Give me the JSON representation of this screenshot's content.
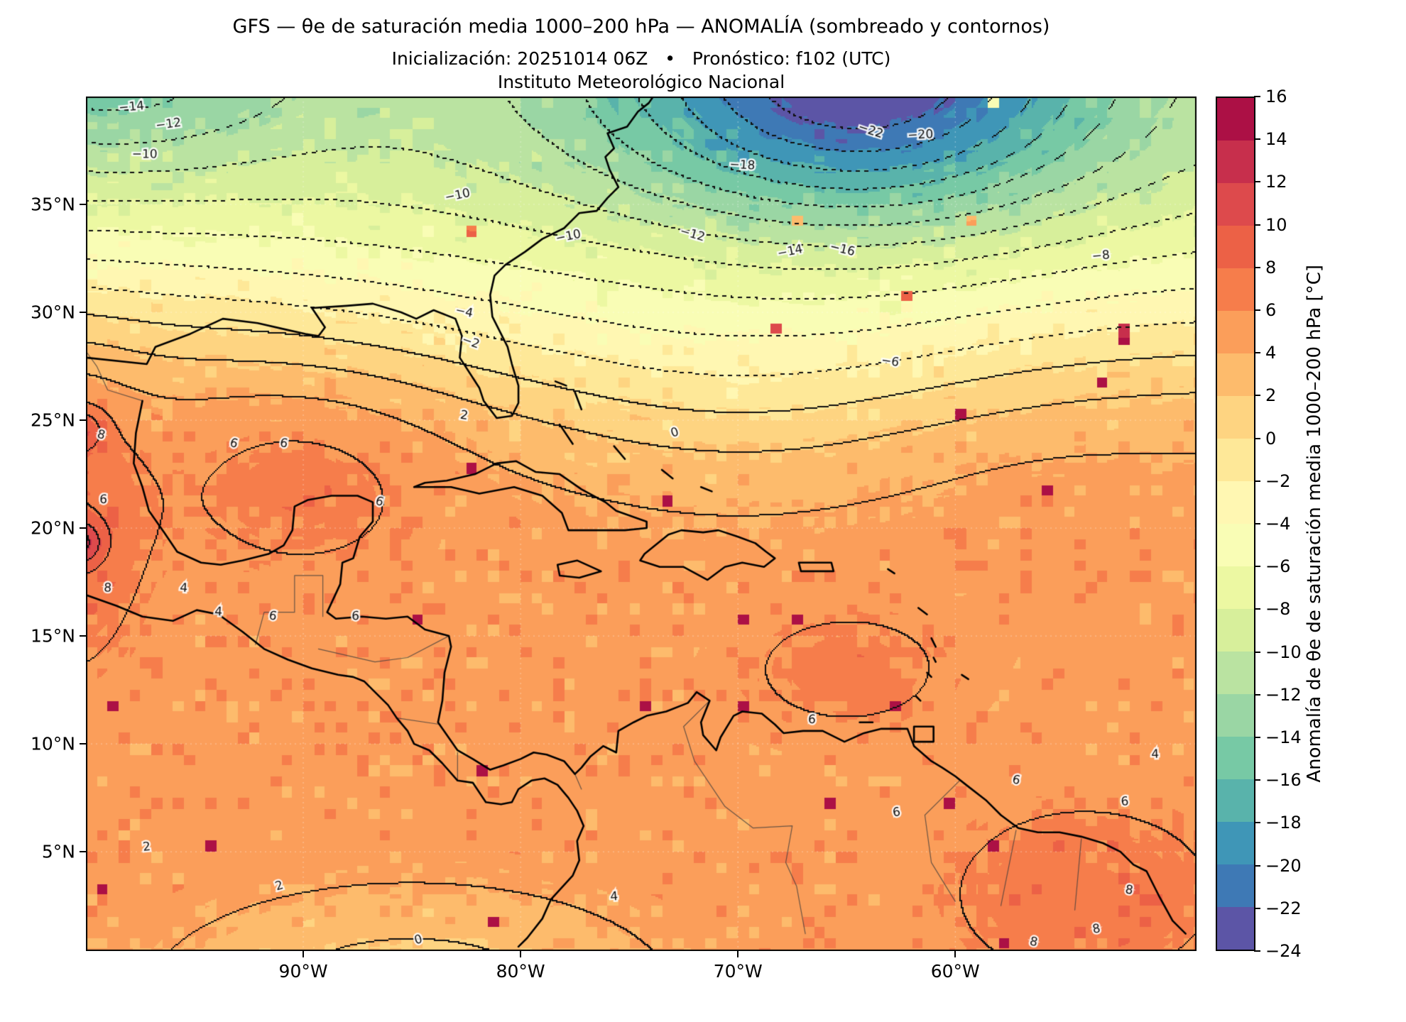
{
  "header": {
    "title": "GFS — θe de saturación media 1000–200 hPa — ANOMALÍA (sombreado y contornos)",
    "subtitle": "Inicialización: 20251014 06Z   •   Pronóstico: f102 (UTC)",
    "org": "Instituto Meteorológico Nacional"
  },
  "chart_data": {
    "type": "heatmap",
    "field_name": "Anomalía de θe de saturación media 1000–200 hPa",
    "units": "°C",
    "contour_interval": 2,
    "projection": {
      "lon_min": -100.0,
      "lon_max": -48.9,
      "lat_min": 0.4,
      "lat_max": 40.0
    },
    "x_axis": {
      "ticks": [
        {
          "lon": -90,
          "label": "90°W"
        },
        {
          "lon": -80,
          "label": "80°W"
        },
        {
          "lon": -70,
          "label": "70°W"
        },
        {
          "lon": -60,
          "label": "60°W"
        }
      ]
    },
    "y_axis": {
      "ticks": [
        {
          "lat": 35,
          "label": "35°N"
        },
        {
          "lat": 30,
          "label": "30°N"
        },
        {
          "lat": 25,
          "label": "25°N"
        },
        {
          "lat": 20,
          "label": "20°N"
        },
        {
          "lat": 15,
          "label": "15°N"
        },
        {
          "lat": 10,
          "label": "10°N"
        },
        {
          "lat": 5,
          "label": "5°N"
        }
      ]
    },
    "colorbar": {
      "label": "Anomalía de θe de saturación media 1000–200 hPa [°C]",
      "levels": [
        -24,
        -22,
        -20,
        -18,
        -16,
        -14,
        -12,
        -10,
        -8,
        -6,
        -4,
        -2,
        0,
        2,
        4,
        6,
        8,
        10,
        12,
        14,
        16
      ],
      "colors": [
        "#5c55a6",
        "#3e79b5",
        "#3f96b7",
        "#59b3ab",
        "#77c9a5",
        "#9ad6a4",
        "#bae3a1",
        "#d7ef9b",
        "#ecf8a2",
        "#f9fdb5",
        "#fff7b2",
        "#fee898",
        "#fed481",
        "#fdbb6c",
        "#fb9e5a",
        "#f67d4b",
        "#ec6146",
        "#dd4a4c",
        "#c72f4c",
        "#ac1045"
      ]
    },
    "extrema": {
      "minimum": {
        "value": -24,
        "lon": -64,
        "lat": 40
      },
      "maximum": {
        "value": 12,
        "lon": -100.3,
        "lat": 19.3
      }
    },
    "field_model": {
      "base": 5.0,
      "sigmoids": [
        {
          "amp": -9.5,
          "lat0": 28.3,
          "width": 2.2,
          "lon_dip": {
            "amp": 3.0,
            "lon0": -70,
            "sx": 12
          },
          "lon_raise": {
            "amp": 1.5,
            "lon0": -101,
            "sx": 14
          }
        },
        {
          "amp": -9.5,
          "lat0": 34.0,
          "width": 2.3,
          "lon_weight": {
            "base": 0.55,
            "amp": 0.45,
            "lon0": -67,
            "sx": 16
          }
        }
      ],
      "gaussians": [
        {
          "amp": -11.0,
          "lon": -64,
          "lat": 41,
          "sx": 10,
          "sy": 6.2
        },
        {
          "amp": -5.5,
          "lon": -99,
          "lat": 41,
          "sx": 9,
          "sy": 4.5
        },
        {
          "amp": 2.2,
          "lon": -90,
          "lat": 22.5,
          "sx": 6,
          "sy": 4.5
        },
        {
          "amp": 3.2,
          "lon": -101,
          "lat": 21,
          "sx": 3.5,
          "sy": 7
        },
        {
          "amp": 5.2,
          "lon": -100.3,
          "lat": 19.3,
          "sx": 1.1,
          "sy": 1.0
        },
        {
          "amp": 3.6,
          "lon": -100.2,
          "lat": 24.6,
          "sx": 1.0,
          "sy": 0.9
        },
        {
          "amp": 1.8,
          "lon": -65,
          "lat": 13.5,
          "sx": 5,
          "sy": 3
        },
        {
          "amp": 2.5,
          "lon": -54,
          "lat": 3,
          "sx": 6,
          "sy": 4
        },
        {
          "amp": -4.2,
          "lon": -85,
          "lat": -1.5,
          "sx": 10,
          "sy": 4.2
        },
        {
          "amp": 0.6,
          "lon": -55,
          "lat": 19,
          "sx": 5,
          "sy": 4
        }
      ],
      "noise": {
        "cell_deg": 0.5,
        "amp": 1.1,
        "spike_threshold": 0.93,
        "spike_amp": 0.85,
        "neg_threshold": 0.05,
        "neg_amp": 0.7,
        "hot_threshold": 0.996,
        "hot_amp": 14
      }
    },
    "contour_labels": [
      {
        "text": "−14",
        "lon": -97.9,
        "lat": 39.5
      },
      {
        "text": "−12",
        "lon": -96.2,
        "lat": 38.7
      },
      {
        "text": "−10",
        "lon": -97.3,
        "lat": 37.3
      },
      {
        "text": "−10",
        "lon": -82.9,
        "lat": 35.4
      },
      {
        "text": "−10",
        "lon": -77.8,
        "lat": 33.5
      },
      {
        "text": "−12",
        "lon": -72.1,
        "lat": 33.6
      },
      {
        "text": "−14",
        "lon": -67.6,
        "lat": 32.8
      },
      {
        "text": "−16",
        "lon": -65.2,
        "lat": 32.9
      },
      {
        "text": "−18",
        "lon": -69.8,
        "lat": 36.8
      },
      {
        "text": "−20",
        "lon": -61.6,
        "lat": 38.2
      },
      {
        "text": "−22",
        "lon": -63.9,
        "lat": 38.4
      },
      {
        "text": "−8",
        "lon": -53.3,
        "lat": 32.6
      },
      {
        "text": "−6",
        "lon": -63.0,
        "lat": 27.7
      },
      {
        "text": "−4",
        "lon": -82.6,
        "lat": 30.0
      },
      {
        "text": "−2",
        "lon": -82.3,
        "lat": 28.6
      },
      {
        "text": "0",
        "lon": -72.9,
        "lat": 24.4
      },
      {
        "text": "2",
        "lon": -82.6,
        "lat": 25.2
      },
      {
        "text": "6",
        "lon": -93.2,
        "lat": 23.9
      },
      {
        "text": "6",
        "lon": -90.9,
        "lat": 23.9
      },
      {
        "text": "6",
        "lon": -86.5,
        "lat": 21.2
      },
      {
        "text": "8",
        "lon": -99.3,
        "lat": 24.3
      },
      {
        "text": "8",
        "lon": -99.0,
        "lat": 17.2
      },
      {
        "text": "6",
        "lon": -99.2,
        "lat": 21.3
      },
      {
        "text": "4",
        "lon": -95.5,
        "lat": 17.2
      },
      {
        "text": "4",
        "lon": -93.9,
        "lat": 16.1
      },
      {
        "text": "6",
        "lon": -91.4,
        "lat": 15.9
      },
      {
        "text": "6",
        "lon": -87.6,
        "lat": 15.9
      },
      {
        "text": "6",
        "lon": -66.6,
        "lat": 11.1
      },
      {
        "text": "6",
        "lon": -62.7,
        "lat": 6.8
      },
      {
        "text": "6",
        "lon": -57.2,
        "lat": 8.3
      },
      {
        "text": "2",
        "lon": -91.1,
        "lat": 3.4
      },
      {
        "text": "2",
        "lon": -97.2,
        "lat": 5.2
      },
      {
        "text": "0",
        "lon": -84.7,
        "lat": 0.9
      },
      {
        "text": "4",
        "lon": -75.7,
        "lat": 2.9
      },
      {
        "text": "8",
        "lon": -53.5,
        "lat": 1.4
      },
      {
        "text": "8",
        "lon": -56.4,
        "lat": 0.8
      },
      {
        "text": "8",
        "lon": -52.0,
        "lat": 3.2
      },
      {
        "text": "6",
        "lon": -52.2,
        "lat": 7.3
      },
      {
        "text": "4",
        "lon": -50.8,
        "lat": 9.5
      }
    ]
  }
}
